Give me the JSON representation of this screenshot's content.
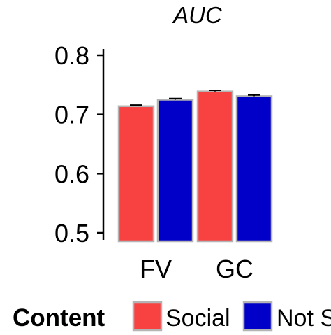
{
  "chart_data": {
    "type": "bar",
    "title": "AUC",
    "categories": [
      "FV",
      "GC"
    ],
    "series": [
      {
        "name": "Social",
        "color": "#f84141",
        "values": [
          0.714,
          0.739
        ],
        "errors": [
          0.002,
          0.002
        ]
      },
      {
        "name": "Not S",
        "color": "#0000c8",
        "values": [
          0.725,
          0.731
        ],
        "errors": [
          0.002,
          0.002
        ]
      }
    ],
    "ylim": [
      0.5,
      0.8
    ],
    "yticks": [
      0.5,
      0.6,
      0.7,
      0.8
    ],
    "ytick_labels": [
      "0.5",
      "0.6",
      "0.7",
      "0.8"
    ],
    "xlabel": "",
    "ylabel": "",
    "grid": false,
    "legend": {
      "title": "Content",
      "placement": "bottom"
    },
    "bar_outline_color": "#b4b4b4"
  }
}
